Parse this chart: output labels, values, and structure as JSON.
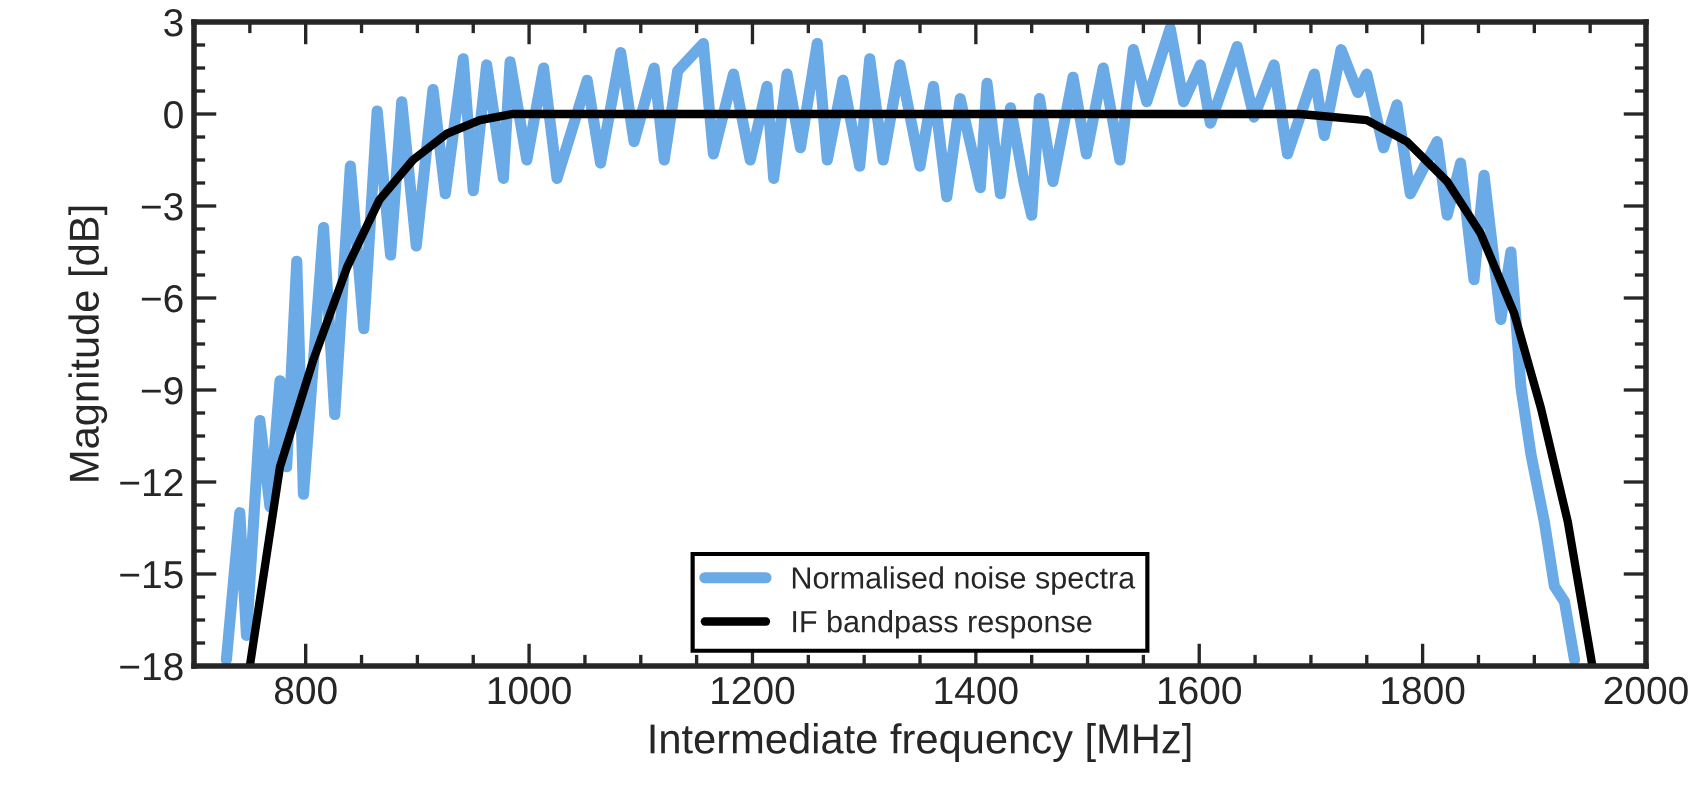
{
  "chart_data": {
    "type": "line",
    "xlabel": "Intermediate frequency [MHz]",
    "ylabel": "Magnitude [dB]",
    "xlim": [
      700,
      2000
    ],
    "xticks": [
      800,
      1000,
      1200,
      1400,
      1600,
      1800,
      2000
    ],
    "ylim": [
      -18,
      3
    ],
    "yticks": [
      {
        "value": -18,
        "label": "−18"
      },
      {
        "value": -15,
        "label": "−15"
      },
      {
        "value": -12,
        "label": "−12"
      },
      {
        "value": -9,
        "label": "−9"
      },
      {
        "value": -6,
        "label": "−6"
      },
      {
        "value": -3,
        "label": "−3"
      },
      0,
      3
    ],
    "grid": false,
    "legend": "bottom",
    "marker": "none",
    "line_style": "solid",
    "series": [
      {
        "name": "Normalised noise spectra",
        "color": "#6aaae6",
        "x": [
          729,
          741,
          747,
          759,
          768,
          777,
          783,
          792,
          798,
          816,
          826,
          840,
          852,
          864,
          876,
          886,
          899,
          914,
          925,
          941,
          950,
          962,
          977,
          983,
          998,
          1013,
          1025,
          1052,
          1064,
          1082,
          1094,
          1112,
          1121,
          1133,
          1156,
          1165,
          1183,
          1198,
          1213,
          1219,
          1231,
          1243,
          1258,
          1267,
          1281,
          1296,
          1305,
          1317,
          1332,
          1350,
          1362,
          1374,
          1386,
          1404,
          1410,
          1422,
          1431,
          1443,
          1450,
          1457,
          1469,
          1487,
          1499,
          1514,
          1529,
          1541,
          1553,
          1574,
          1586,
          1601,
          1610,
          1634,
          1649,
          1667,
          1679,
          1703,
          1712,
          1727,
          1742,
          1750,
          1765,
          1777,
          1789,
          1813,
          1822,
          1834,
          1846,
          1855,
          1870,
          1879,
          1888,
          1897,
          1909,
          1918,
          1927,
          1936
        ],
        "values": [
          -17.8,
          -13.0,
          -17.0,
          -10.0,
          -12.8,
          -8.7,
          -11.5,
          -4.8,
          -12.4,
          -3.7,
          -9.8,
          -1.7,
          -7.0,
          0.1,
          -4.6,
          0.4,
          -4.3,
          0.8,
          -2.6,
          1.8,
          -2.5,
          1.6,
          -2.1,
          1.7,
          -1.5,
          1.5,
          -2.1,
          1.1,
          -1.6,
          2.0,
          -0.9,
          1.5,
          -1.5,
          1.4,
          2.3,
          -1.3,
          1.3,
          -1.5,
          0.9,
          -2.1,
          1.3,
          -1.1,
          2.3,
          -1.5,
          1.1,
          -1.7,
          1.8,
          -1.5,
          1.6,
          -1.7,
          0.9,
          -2.7,
          0.5,
          -2.4,
          1.0,
          -2.6,
          0.2,
          -2.2,
          -3.3,
          0.5,
          -2.2,
          1.2,
          -1.3,
          1.5,
          -1.5,
          2.1,
          0.4,
          2.8,
          0.4,
          1.6,
          -0.3,
          2.2,
          -0.1,
          1.6,
          -1.3,
          1.3,
          -0.7,
          2.1,
          0.7,
          1.3,
          -1.1,
          0.3,
          -2.6,
          -0.9,
          -3.3,
          -1.6,
          -5.4,
          -2.0,
          -6.7,
          -4.5,
          -8.9,
          -11.1,
          -13.3,
          -15.4,
          -15.9,
          -17.8
        ]
      },
      {
        "name": "IF bandpass response",
        "color": "#000000",
        "x": [
          750,
          777,
          807,
          837,
          866,
          896,
          926,
          956,
          985,
          1000,
          1690,
          1750,
          1786,
          1822,
          1852,
          1882,
          1906,
          1930,
          1952
        ],
        "values": [
          -18,
          -11.5,
          -8.0,
          -5.0,
          -2.8,
          -1.5,
          -0.65,
          -0.2,
          0,
          0,
          0,
          -0.2,
          -0.9,
          -2.2,
          -3.9,
          -6.5,
          -9.6,
          -13.3,
          -18
        ]
      }
    ]
  }
}
